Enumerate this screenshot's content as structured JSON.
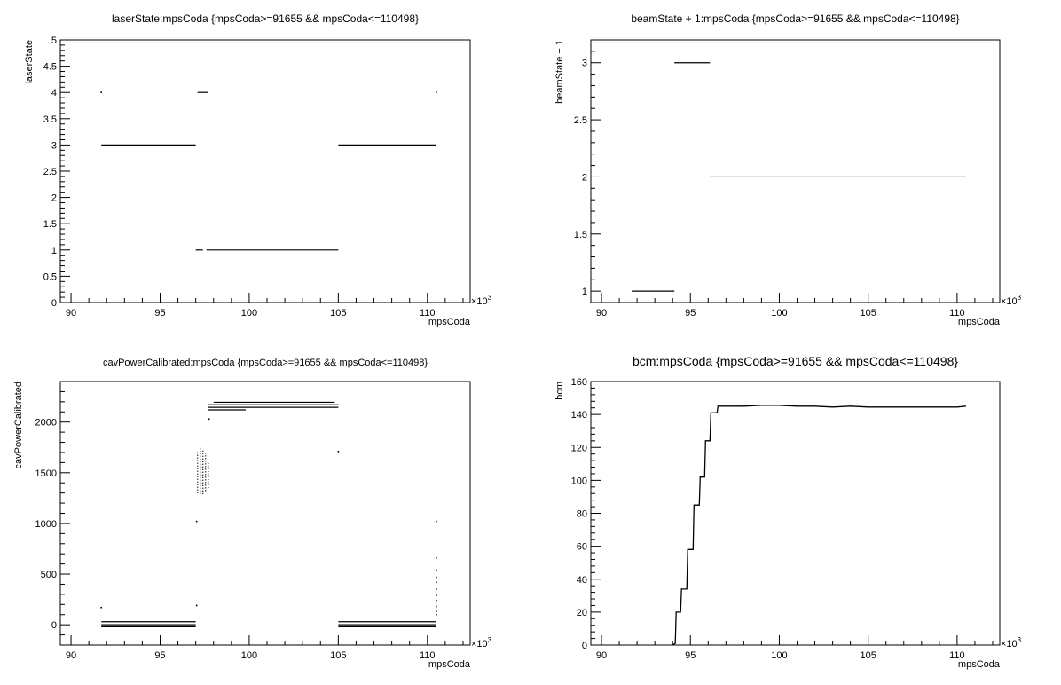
{
  "colors": {
    "axis": "#000000",
    "marker": "#000000",
    "background": "#ffffff"
  },
  "chart_data": [
    {
      "type": "scatter",
      "title": "laserState:mpsCoda {mpsCoda>=91655 && mpsCoda<=110498}",
      "xlabel": "mpsCoda",
      "ylabel": "laserState",
      "x_exponent": "×10",
      "x_exponent_power": "3",
      "xlim": [
        89.4,
        112.4
      ],
      "ylim": [
        0,
        5
      ],
      "xticks": [
        90,
        95,
        100,
        105,
        110
      ],
      "xtick_labels": [
        "90",
        "95",
        "100",
        "105",
        "110"
      ],
      "yticks": [
        0,
        0.5,
        1,
        1.5,
        2,
        2.5,
        3,
        3.5,
        4,
        4.5,
        5
      ],
      "ytick_labels": [
        "0",
        "0.5",
        "1",
        "1.5",
        "2",
        "2.5",
        "3",
        "3.5",
        "4",
        "4.5",
        "5"
      ],
      "segments": [
        {
          "x": [
            91.7,
            97.0
          ],
          "y": 3
        },
        {
          "x": [
            105.0,
            110.5
          ],
          "y": 3
        },
        {
          "x": [
            97.0,
            97.4
          ],
          "y": 1
        },
        {
          "x": [
            97.6,
            105.0
          ],
          "y": 1
        },
        {
          "x": [
            97.1,
            97.7
          ],
          "y": 4
        }
      ],
      "points": [
        {
          "x": 91.7,
          "y": 4
        },
        {
          "x": 110.5,
          "y": 4
        }
      ]
    },
    {
      "type": "scatter",
      "title": "beamState + 1:mpsCoda {mpsCoda>=91655 && mpsCoda<=110498}",
      "xlabel": "mpsCoda",
      "ylabel": "beamState + 1",
      "x_exponent": "×10",
      "x_exponent_power": "3",
      "xlim": [
        89.4,
        112.4
      ],
      "ylim": [
        0.9,
        3.2
      ],
      "xticks": [
        90,
        95,
        100,
        105,
        110
      ],
      "xtick_labels": [
        "90",
        "95",
        "100",
        "105",
        "110"
      ],
      "yticks": [
        1,
        1.5,
        2,
        2.5,
        3
      ],
      "ytick_labels": [
        "1",
        "1.5",
        "2",
        "2.5",
        "3"
      ],
      "segments": [
        {
          "x": [
            91.7,
            94.1
          ],
          "y": 1
        },
        {
          "x": [
            94.1,
            96.1
          ],
          "y": 3
        },
        {
          "x": [
            96.1,
            110.5
          ],
          "y": 2
        }
      ],
      "points": []
    },
    {
      "type": "scatter",
      "title": "cavPowerCalibrated:mpsCoda {mpsCoda>=91655 && mpsCoda<=110498}",
      "xlabel": "mpsCoda",
      "ylabel": "cavPowerCalibrated",
      "x_exponent": "×10",
      "x_exponent_power": "3",
      "xlim": [
        89.4,
        112.4
      ],
      "ylim": [
        -200,
        2400
      ],
      "xticks": [
        90,
        95,
        100,
        105,
        110
      ],
      "xtick_labels": [
        "90",
        "95",
        "100",
        "105",
        "110"
      ],
      "yticks": [
        0,
        500,
        1000,
        1500,
        2000
      ],
      "ytick_labels": [
        "0",
        "500",
        "1000",
        "1500",
        "2000"
      ],
      "segments": [
        {
          "x": [
            91.7,
            97.0
          ],
          "y": 30
        },
        {
          "x": [
            91.7,
            97.0
          ],
          "y": 0
        },
        {
          "x": [
            91.7,
            97.0
          ],
          "y": -20
        },
        {
          "x": [
            105.0,
            110.5
          ],
          "y": 30
        },
        {
          "x": [
            105.0,
            110.5
          ],
          "y": 0
        },
        {
          "x": [
            105.0,
            110.5
          ],
          "y": -20
        },
        {
          "x": [
            97.7,
            105.0
          ],
          "y": 2170
        },
        {
          "x": [
            97.7,
            105.0
          ],
          "y": 2145
        },
        {
          "x": [
            98.0,
            104.8
          ],
          "y": 2195
        },
        {
          "x": [
            97.7,
            99.8
          ],
          "y": 2120
        },
        {
          "x": [
            97.1,
            97.1
          ],
          "y": [
            1300,
            1720
          ]
        },
        {
          "x": [
            97.25,
            97.25
          ],
          "y": [
            1290,
            1760
          ]
        },
        {
          "x": [
            97.4,
            97.4
          ],
          "y": [
            1290,
            1730
          ]
        },
        {
          "x": [
            97.55,
            97.55
          ],
          "y": [
            1320,
            1700
          ]
        },
        {
          "x": [
            97.7,
            97.7
          ],
          "y": [
            1350,
            1620
          ]
        }
      ],
      "points": [
        {
          "x": 91.7,
          "y": 170
        },
        {
          "x": 97.05,
          "y": 1020
        },
        {
          "x": 97.05,
          "y": 190
        },
        {
          "x": 97.75,
          "y": 2030
        },
        {
          "x": 105.0,
          "y": 1710
        },
        {
          "x": 110.5,
          "y": 1020
        },
        {
          "x": 110.5,
          "y": 660
        },
        {
          "x": 110.5,
          "y": 540
        },
        {
          "x": 110.5,
          "y": 470
        },
        {
          "x": 110.5,
          "y": 420
        },
        {
          "x": 110.5,
          "y": 350
        },
        {
          "x": 110.5,
          "y": 290
        },
        {
          "x": 110.5,
          "y": 240
        },
        {
          "x": 110.5,
          "y": 180
        },
        {
          "x": 110.5,
          "y": 130
        },
        {
          "x": 110.5,
          "y": 100
        }
      ]
    },
    {
      "type": "line",
      "title": "bcm:mpsCoda {mpsCoda>=91655 && mpsCoda<=110498}",
      "xlabel": "mpsCoda",
      "ylabel": "bcm",
      "x_exponent": "×10",
      "x_exponent_power": "3",
      "xlim": [
        89.4,
        112.4
      ],
      "ylim": [
        0,
        160
      ],
      "xticks": [
        90,
        95,
        100,
        105,
        110
      ],
      "xtick_labels": [
        "90",
        "95",
        "100",
        "105",
        "110"
      ],
      "yticks": [
        0,
        20,
        40,
        60,
        80,
        100,
        120,
        140,
        160
      ],
      "ytick_labels": [
        "0",
        "20",
        "40",
        "60",
        "80",
        "100",
        "120",
        "140",
        "160"
      ],
      "series": [
        {
          "x": [
            94.0,
            94.15,
            94.2,
            94.45,
            94.5,
            94.8,
            94.85,
            95.15,
            95.2,
            95.5,
            95.55,
            95.8,
            95.85,
            96.1,
            96.15,
            96.5,
            96.55,
            96.9,
            97.0,
            98.0,
            99.0,
            100.0,
            101.0,
            102.0,
            103.0,
            104.0,
            105.0,
            106.0,
            107.0,
            108.0,
            109.0,
            110.0,
            110.5
          ],
          "y": [
            0,
            1,
            20,
            20,
            34,
            34,
            58,
            58,
            85,
            85,
            102,
            102,
            124,
            124,
            141,
            141,
            145,
            145,
            145,
            145,
            145.5,
            145.5,
            145,
            145,
            144.5,
            145,
            144.5,
            144.5,
            144.5,
            144.5,
            144.5,
            144.5,
            145
          ]
        }
      ]
    }
  ]
}
